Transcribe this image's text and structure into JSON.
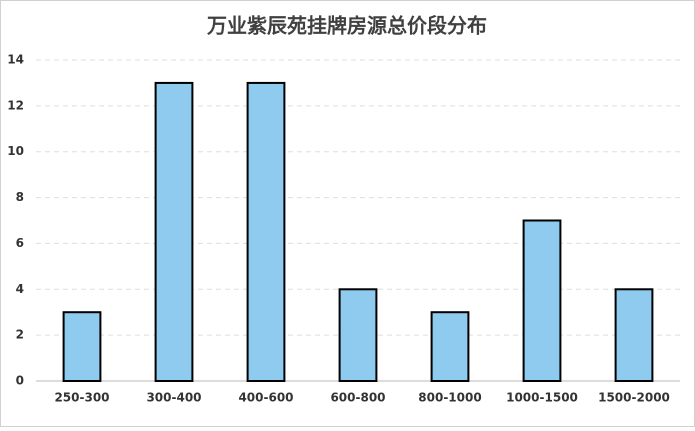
{
  "chart_data": {
    "type": "bar",
    "title": "万业紫辰苑挂牌房源总价段分布",
    "categories": [
      "250-300",
      "300-400",
      "400-600",
      "600-800",
      "800-1000",
      "1000-1500",
      "1500-2000"
    ],
    "values": [
      3,
      13,
      13,
      4,
      3,
      7,
      4
    ],
    "color": "#8ecbee",
    "ylim": [
      0,
      14
    ],
    "yticks": [
      0,
      2,
      4,
      6,
      8,
      10,
      12,
      14
    ],
    "grid": true
  }
}
